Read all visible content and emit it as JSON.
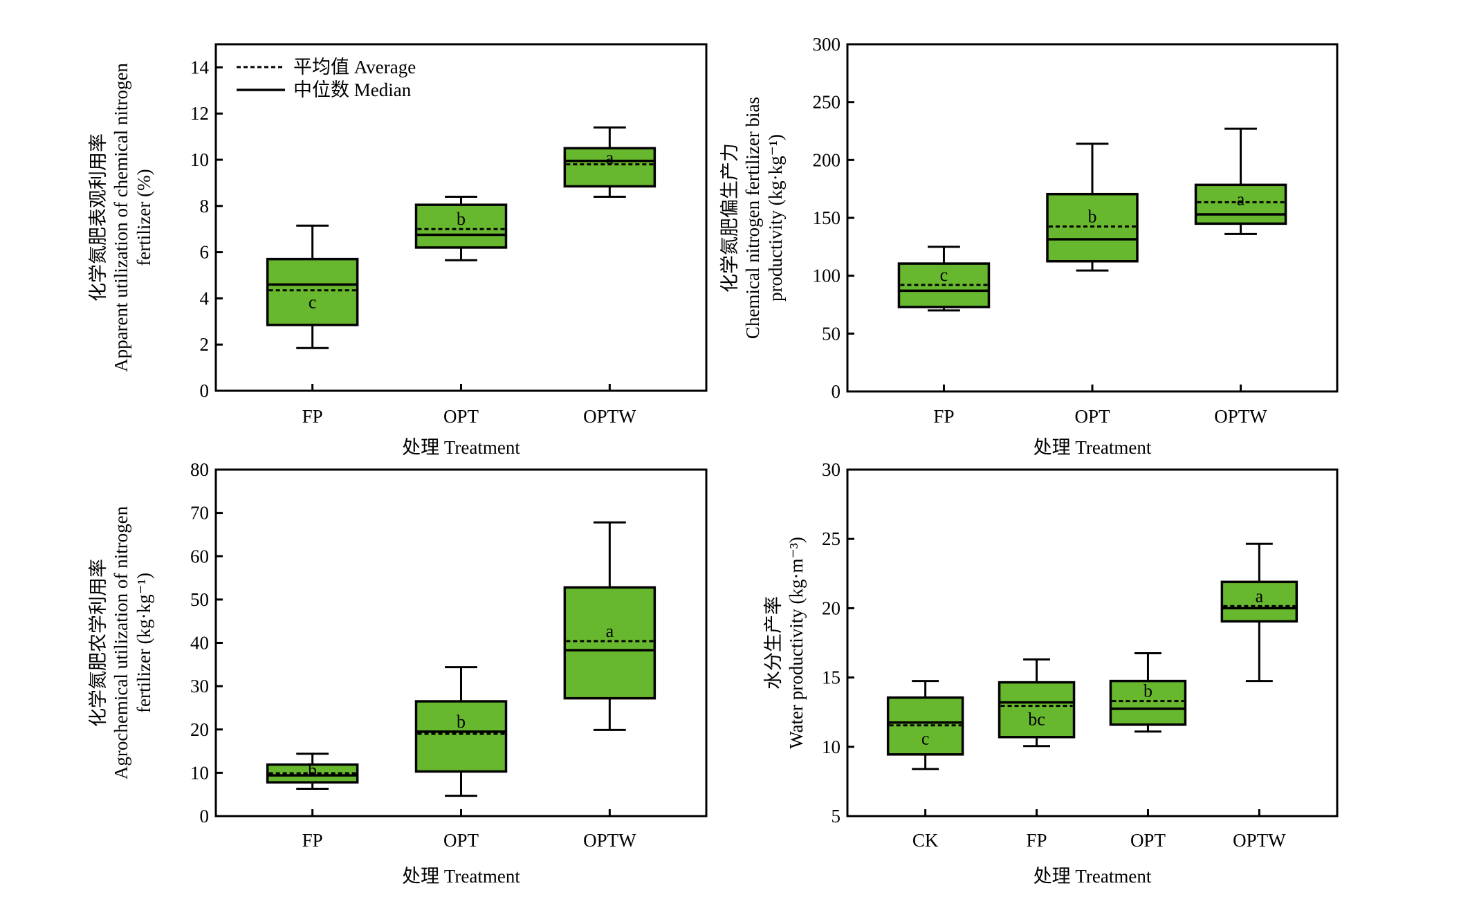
{
  "figure": {
    "box_fill": "#67b82e",
    "line_color": "#000000",
    "legend": {
      "mean_label": "平均值 Average",
      "median_label": "中位数 Median"
    }
  },
  "chart_data": [
    {
      "type": "box",
      "id": "apparent-utilization",
      "title": "",
      "xlabel": "处理 Treatment",
      "ylabel_lines": [
        "化学氮肥表观利用率",
        "Apparent utilization of chemical nitrogen",
        "fertilizer (%)"
      ],
      "ylim": [
        0,
        15
      ],
      "yticks": [
        0,
        2,
        4,
        6,
        8,
        10,
        12,
        14
      ],
      "legend": "top-left",
      "categories": [
        "FP",
        "OPT",
        "OPTW"
      ],
      "boxes": [
        {
          "category": "FP",
          "whisker_low": 1.85,
          "q1": 2.85,
          "median": 4.6,
          "mean": 4.35,
          "q3": 5.7,
          "whisker_high": 7.15,
          "letter": "c"
        },
        {
          "category": "OPT",
          "whisker_low": 5.65,
          "q1": 6.2,
          "median": 6.75,
          "mean": 7.0,
          "q3": 8.05,
          "whisker_high": 8.4,
          "letter": "b"
        },
        {
          "category": "OPTW",
          "whisker_low": 8.4,
          "q1": 8.85,
          "median": 9.95,
          "mean": 9.8,
          "q3": 10.5,
          "whisker_high": 11.4,
          "letter": "a"
        }
      ]
    },
    {
      "type": "box",
      "id": "bias-productivity",
      "title": "",
      "xlabel": "处理 Treatment",
      "ylabel_lines": [
        "化学氮肥偏生产力",
        "Chemical nitrogen fertilizer bias",
        "productivity (kg·kg⁻¹)"
      ],
      "ylim": [
        0,
        300
      ],
      "yticks": [
        0,
        50,
        100,
        150,
        200,
        250,
        300
      ],
      "legend": "none",
      "categories": [
        "FP",
        "OPT",
        "OPTW"
      ],
      "boxes": [
        {
          "category": "FP",
          "whisker_low": 70,
          "q1": 73,
          "median": 87,
          "mean": 92,
          "q3": 110.5,
          "whisker_high": 125,
          "letter": "c"
        },
        {
          "category": "OPT",
          "whisker_low": 104.5,
          "q1": 112.5,
          "median": 131.5,
          "mean": 142.5,
          "q3": 170.5,
          "whisker_high": 214,
          "letter": "b"
        },
        {
          "category": "OPTW",
          "whisker_low": 136,
          "q1": 145,
          "median": 153,
          "mean": 163.5,
          "q3": 178.5,
          "whisker_high": 227,
          "letter": "a"
        }
      ]
    },
    {
      "type": "box",
      "id": "agrochemical-utilization",
      "title": "",
      "xlabel": "处理 Treatment",
      "ylabel_lines": [
        "化学氮肥农学利用率",
        "Agrochemical utilization of nitrogen",
        "fertilizer (kg·kg⁻¹)"
      ],
      "ylim": [
        0,
        80
      ],
      "yticks": [
        0,
        10,
        20,
        30,
        40,
        50,
        60,
        70,
        80
      ],
      "legend": "none",
      "categories": [
        "FP",
        "OPT",
        "OPTW"
      ],
      "boxes": [
        {
          "category": "FP",
          "whisker_low": 6.3,
          "q1": 7.8,
          "median": 9.4,
          "mean": 9.9,
          "q3": 11.9,
          "whisker_high": 14.4,
          "letter": "b"
        },
        {
          "category": "OPT",
          "whisker_low": 4.7,
          "q1": 10.3,
          "median": 19.5,
          "mean": 19.0,
          "q3": 26.5,
          "whisker_high": 34.4,
          "letter": "b"
        },
        {
          "category": "OPTW",
          "whisker_low": 19.9,
          "q1": 27.2,
          "median": 38.3,
          "mean": 40.4,
          "q3": 52.8,
          "whisker_high": 67.8,
          "letter": "a"
        }
      ]
    },
    {
      "type": "box",
      "id": "water-productivity",
      "title": "",
      "xlabel": "处理 Treatment",
      "ylabel_lines": [
        "水分生产率",
        "Water productivity (kg·m⁻³)"
      ],
      "ylim": [
        5,
        30
      ],
      "yticks": [
        5,
        10,
        15,
        20,
        25,
        30
      ],
      "legend": "none",
      "categories": [
        "CK",
        "FP",
        "OPT",
        "OPTW"
      ],
      "boxes": [
        {
          "category": "CK",
          "whisker_low": 8.4,
          "q1": 9.45,
          "median": 11.75,
          "mean": 11.55,
          "q3": 13.55,
          "whisker_high": 14.75,
          "letter": "c"
        },
        {
          "category": "FP",
          "whisker_low": 10.05,
          "q1": 10.7,
          "median": 13.2,
          "mean": 12.95,
          "q3": 14.65,
          "whisker_high": 16.3,
          "letter": "bc"
        },
        {
          "category": "OPT",
          "whisker_low": 11.1,
          "q1": 11.6,
          "median": 12.75,
          "mean": 13.3,
          "q3": 14.75,
          "whisker_high": 16.75,
          "letter": "b"
        },
        {
          "category": "OPTW",
          "whisker_low": 14.75,
          "q1": 19.05,
          "median": 20.0,
          "mean": 20.15,
          "q3": 21.9,
          "whisker_high": 24.65,
          "letter": "a"
        }
      ]
    }
  ]
}
